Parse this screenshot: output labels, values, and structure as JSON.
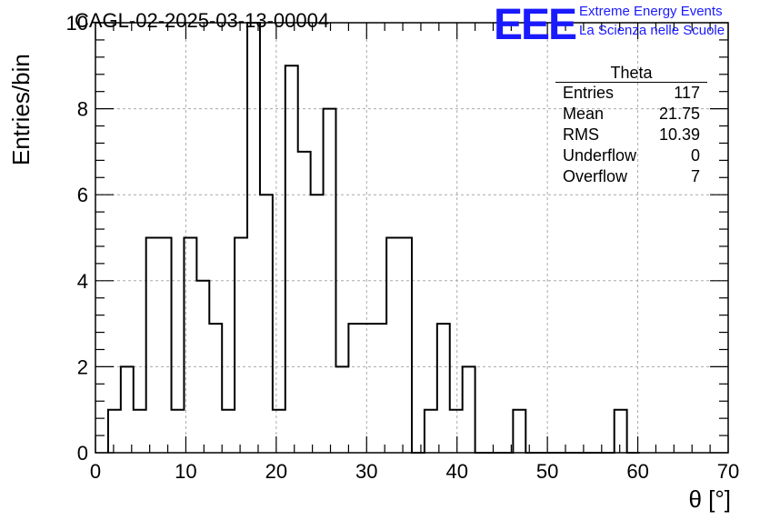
{
  "header": {
    "title": "CAGL-02-2025-03-13-00004"
  },
  "logo": {
    "mark": "EEE",
    "line1": "Extreme Energy Events",
    "line2": "La Scienza nelle Scuole",
    "color": "#1a1aff"
  },
  "stats_box": {
    "title": "Theta",
    "rows": [
      {
        "label": "Entries",
        "value": "117"
      },
      {
        "label": "Mean",
        "value": "21.75"
      },
      {
        "label": "RMS",
        "value": "10.39"
      },
      {
        "label": "Underflow",
        "value": "0"
      },
      {
        "label": "Overflow",
        "value": "7"
      }
    ]
  },
  "chart_data": {
    "type": "bar",
    "histogram": true,
    "title": "CAGL-02-2025-03-13-00004",
    "xlabel": "θ [°]",
    "ylabel": "Entries/bin",
    "xlim": [
      0,
      70
    ],
    "ylim": [
      0,
      10
    ],
    "grid": true,
    "bin_width": 1.4,
    "bins": [
      [
        1.4,
        1
      ],
      [
        2.8,
        2
      ],
      [
        4.2,
        1
      ],
      [
        5.6,
        5
      ],
      [
        7.0,
        5
      ],
      [
        8.4,
        1
      ],
      [
        9.8,
        5
      ],
      [
        11.2,
        4
      ],
      [
        12.6,
        3
      ],
      [
        14.0,
        1
      ],
      [
        15.4,
        5
      ],
      [
        16.8,
        10
      ],
      [
        18.2,
        6
      ],
      [
        19.6,
        1
      ],
      [
        21.0,
        9
      ],
      [
        22.4,
        7
      ],
      [
        23.8,
        6
      ],
      [
        25.2,
        8
      ],
      [
        26.6,
        2
      ],
      [
        28.0,
        3
      ],
      [
        29.4,
        3
      ],
      [
        30.8,
        3
      ],
      [
        32.2,
        5
      ],
      [
        33.6,
        5
      ],
      [
        35.0,
        0
      ],
      [
        36.4,
        1
      ],
      [
        37.8,
        3
      ],
      [
        39.2,
        1
      ],
      [
        40.6,
        2
      ],
      [
        42.0,
        0
      ],
      [
        43.4,
        0
      ],
      [
        44.8,
        0
      ],
      [
        46.2,
        1
      ],
      [
        47.6,
        0
      ],
      [
        49.0,
        0
      ],
      [
        50.4,
        0
      ],
      [
        51.8,
        0
      ],
      [
        53.2,
        0
      ],
      [
        54.6,
        0
      ],
      [
        56.0,
        0
      ],
      [
        57.4,
        1
      ],
      [
        58.8,
        0
      ]
    ],
    "x_ticks": [
      "0",
      "10",
      "20",
      "30",
      "40",
      "50",
      "60",
      "70"
    ],
    "y_ticks": [
      "0",
      "2",
      "4",
      "6",
      "8",
      "10"
    ]
  }
}
